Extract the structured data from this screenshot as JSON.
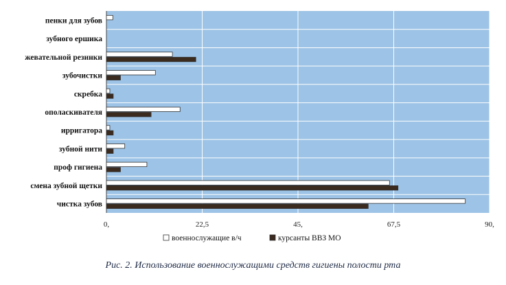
{
  "chart_data": {
    "type": "bar",
    "orientation": "horizontal",
    "categories": [
      "пенки для зубов",
      "зубного ершика",
      "жевательной резинки",
      "зубочистки",
      "скребка",
      "ополаскивателя",
      "ирригатора",
      "зубной нити",
      "проф гигиена",
      "смена зубной щетки",
      "чистка зубов"
    ],
    "series": [
      {
        "name": "военнослужащие в/ч",
        "color": "#ffffff",
        "values": [
          1.5,
          0,
          15.5,
          11.5,
          0.8,
          17.3,
          0.8,
          4.3,
          9.5,
          66.5,
          84.3
        ]
      },
      {
        "name": "курсанты ВВЗ МО",
        "color": "#3b2a1e",
        "values": [
          0,
          0,
          21,
          3.3,
          1.6,
          10.5,
          1.6,
          1.6,
          3.3,
          68.5,
          61.5
        ]
      }
    ],
    "xticks": [
      "0,",
      "22,5",
      "45,",
      "67,5",
      "90,"
    ],
    "xlim": [
      0,
      90
    ],
    "grid": true,
    "plot_background": "#9dc3e6",
    "legend_position": "bottom",
    "caption": "Рис. 2. Использование военнослужащими средств гигиены полости рта"
  }
}
